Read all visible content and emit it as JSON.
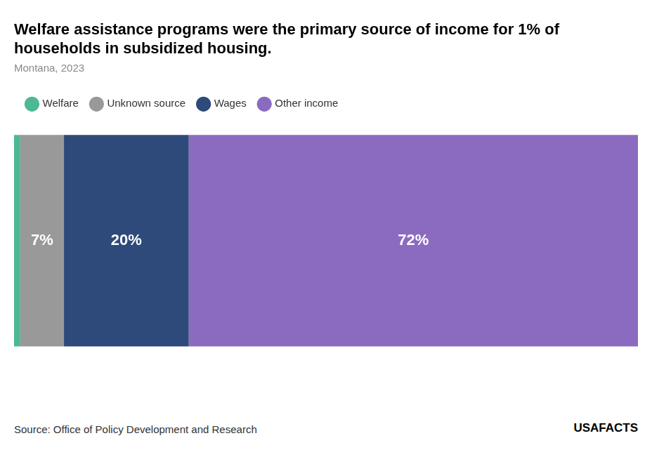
{
  "chart_data": {
    "type": "bar",
    "orientation": "horizontal",
    "stacked": true,
    "title": [
      "Welfare assistance programs were the primary source of income for 1% of",
      "households in subsidized housing."
    ],
    "subtitle": "Montana, 2023",
    "categories": [
      null
    ],
    "series": [
      {
        "name": "Welfare",
        "color": "#4db894",
        "values": [
          1
        ]
      },
      {
        "name": "Unknown source",
        "color": "#999999",
        "values": [
          7
        ],
        "value_labels": [
          "7%"
        ]
      },
      {
        "name": "Wages",
        "color": "#2e4a7a",
        "values": [
          20
        ],
        "value_labels": [
          "20%"
        ]
      },
      {
        "name": "Other income",
        "color": "#8b6bbf",
        "values": [
          72
        ],
        "value_labels": [
          "72%"
        ]
      }
    ],
    "xlim": [
      0,
      100
    ],
    "data_labels": true,
    "tick_labels": false,
    "grid": false,
    "legend": "top",
    "source": "Source: Office of Policy Development and Research",
    "annotations": [
      "USAFACTS"
    ]
  }
}
